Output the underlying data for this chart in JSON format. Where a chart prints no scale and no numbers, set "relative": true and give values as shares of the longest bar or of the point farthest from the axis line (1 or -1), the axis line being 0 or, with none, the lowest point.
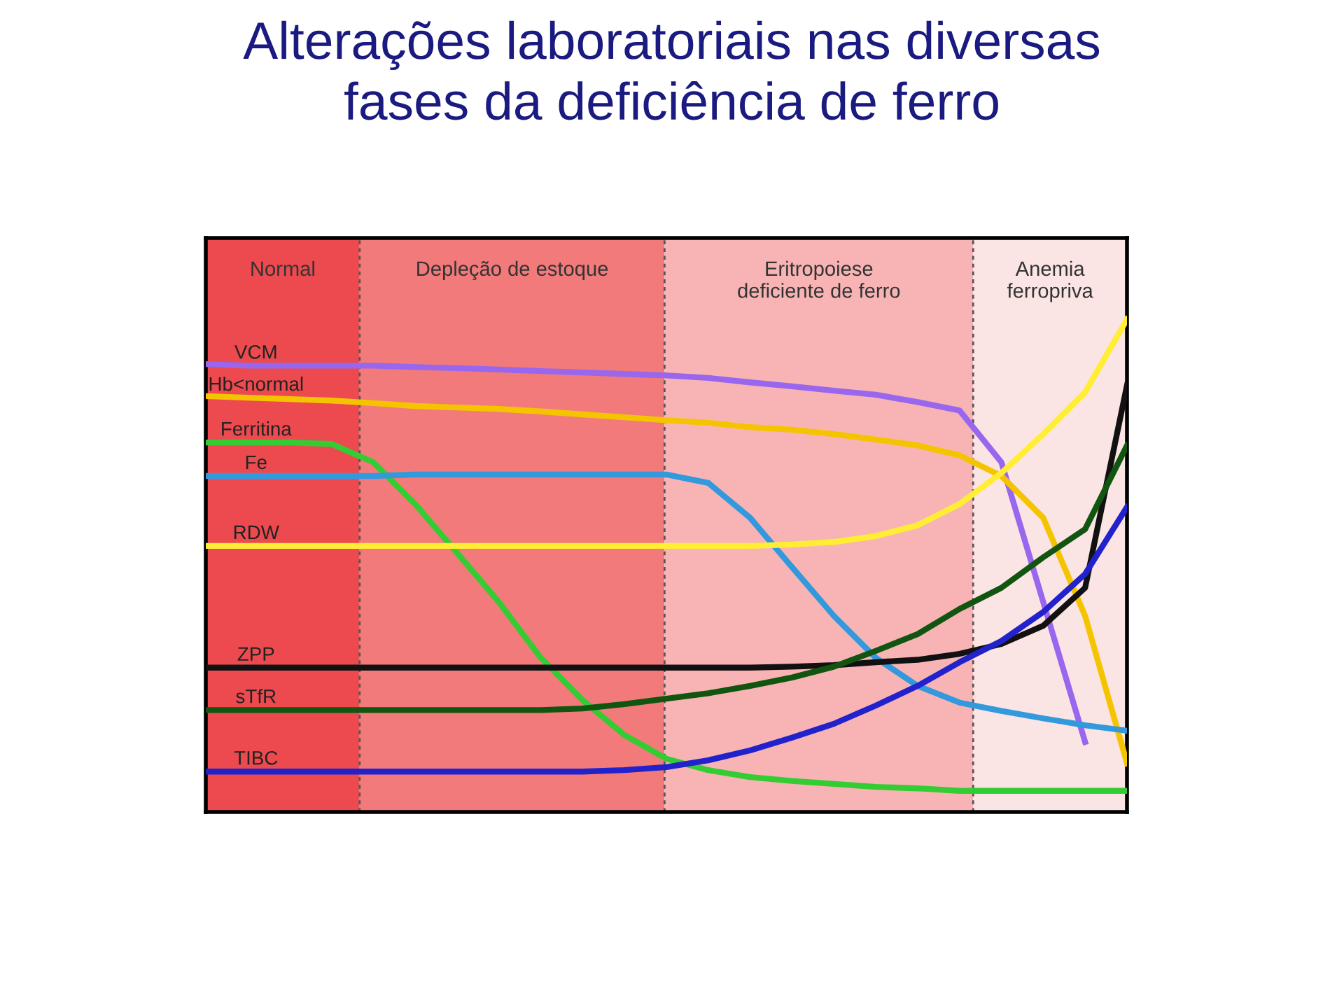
{
  "chart_data": {
    "type": "line",
    "relative": true,
    "title": "Alterações laboratoriais nas diversas\nfases da deficiência de ferro",
    "categories": [
      null,
      null,
      null,
      null,
      null,
      null,
      null,
      null,
      null,
      null,
      null,
      null,
      null,
      null,
      null,
      null,
      null,
      null,
      null,
      null,
      null,
      null,
      null
    ],
    "series": [
      {
        "name": "VCM",
        "color": "#9966ee",
        "values": [
          0.909,
          0.906,
          0.906,
          0.906,
          0.906,
          0.903,
          0.901,
          0.898,
          0.895,
          0.892,
          0.889,
          0.886,
          0.881,
          0.872,
          0.864,
          0.855,
          0.847,
          0.832,
          0.815,
          0.71,
          0.426,
          0.142,
          null
        ]
      },
      {
        "name": "Hb<normal",
        "color": "#f5c400",
        "values": [
          0.844,
          0.841,
          0.838,
          0.835,
          0.83,
          0.824,
          0.821,
          0.818,
          0.813,
          0.807,
          0.801,
          0.795,
          0.79,
          0.781,
          0.776,
          0.767,
          0.756,
          0.744,
          0.724,
          0.682,
          0.597,
          0.398,
          0.099
        ]
      },
      {
        "name": "Ferritina",
        "color": "#33cc33",
        "values": [
          0.75,
          0.75,
          0.75,
          0.747,
          0.71,
          0.625,
          0.526,
          0.426,
          0.313,
          0.227,
          0.156,
          0.108,
          0.085,
          0.071,
          0.063,
          0.057,
          0.051,
          0.048,
          0.043,
          0.043,
          0.043,
          0.043,
          0.043
        ]
      },
      {
        "name": "Fe",
        "color": "#3399dd",
        "values": [
          0.682,
          0.682,
          0.682,
          0.682,
          0.682,
          0.685,
          0.685,
          0.685,
          0.685,
          0.685,
          0.685,
          0.685,
          0.668,
          0.597,
          0.497,
          0.398,
          0.313,
          0.256,
          0.222,
          0.205,
          0.19,
          0.176,
          0.165
        ]
      },
      {
        "name": "RDW",
        "color": "#ffee33",
        "values": [
          0.54,
          0.54,
          0.54,
          0.54,
          0.54,
          0.54,
          0.54,
          0.54,
          0.54,
          0.54,
          0.54,
          0.54,
          0.54,
          0.54,
          0.543,
          0.548,
          0.56,
          0.582,
          0.625,
          0.688,
          0.767,
          0.852,
          1.0
        ]
      },
      {
        "name": "ZPP",
        "color": "#111111",
        "values": [
          0.293,
          0.293,
          0.293,
          0.293,
          0.293,
          0.293,
          0.293,
          0.293,
          0.293,
          0.293,
          0.293,
          0.293,
          0.293,
          0.293,
          0.295,
          0.298,
          0.304,
          0.309,
          0.321,
          0.341,
          0.378,
          0.455,
          0.866
        ]
      },
      {
        "name": "sTfR",
        "color": "#115511",
        "values": [
          0.207,
          0.207,
          0.207,
          0.207,
          0.207,
          0.207,
          0.207,
          0.207,
          0.207,
          0.21,
          0.219,
          0.23,
          0.241,
          0.256,
          0.273,
          0.295,
          0.327,
          0.361,
          0.412,
          0.455,
          0.517,
          0.574,
          0.744
        ]
      },
      {
        "name": "TIBC",
        "color": "#2222cc",
        "values": [
          0.082,
          0.082,
          0.082,
          0.082,
          0.082,
          0.082,
          0.082,
          0.082,
          0.082,
          0.082,
          0.085,
          0.091,
          0.105,
          0.125,
          0.151,
          0.179,
          0.216,
          0.256,
          0.304,
          0.347,
          0.406,
          0.483,
          0.619
        ]
      }
    ],
    "annotations": [
      "Normal",
      "Depleção de estoque",
      "Eritropoiese\ndeficiente de ferro",
      "Anemia\nferropriva"
    ],
    "line_style": "solid",
    "marker": "none",
    "grid": false,
    "legend": false
  }
}
